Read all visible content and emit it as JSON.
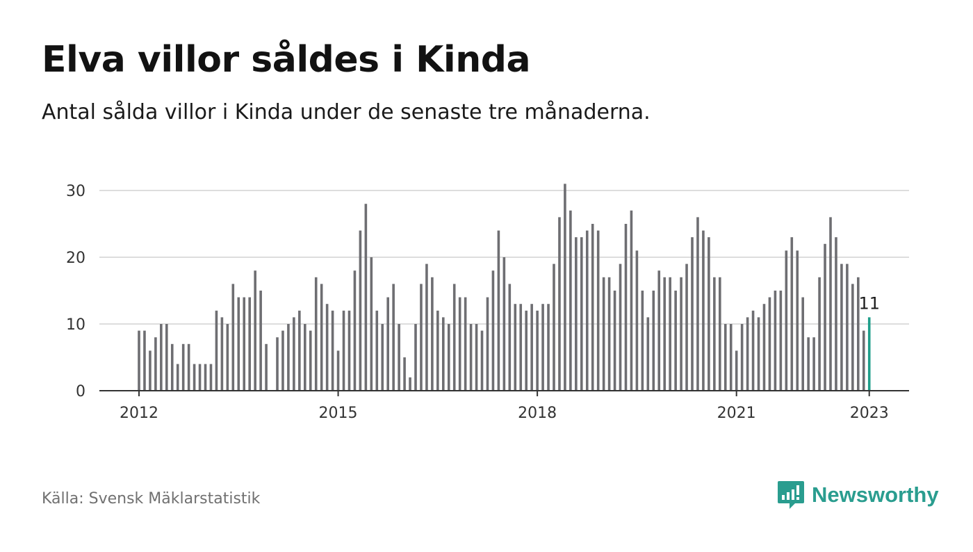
{
  "title": "Elva villor såldes i Kinda",
  "subtitle": "Antal sålda villor i Kinda under de senaste tre månaderna.",
  "source": "Källa: Svensk Mäklarstatistik",
  "brand": {
    "name": "Newsworthy",
    "icon": "newsworthy-logo-icon"
  },
  "colors": {
    "bar": "#6e6e72",
    "highlight": "#1f9e8a",
    "grid": "#dddddd",
    "axis": "#333333",
    "brand": "#2a9d8f"
  },
  "chart_data": {
    "type": "bar",
    "x_start": "2012-01",
    "interval": "month",
    "values": [
      9,
      9,
      6,
      8,
      10,
      10,
      7,
      4,
      7,
      7,
      4,
      4,
      4,
      4,
      12,
      11,
      10,
      16,
      14,
      14,
      14,
      18,
      15,
      7,
      null,
      8,
      9,
      10,
      11,
      12,
      10,
      9,
      17,
      16,
      13,
      12,
      6,
      12,
      12,
      18,
      24,
      28,
      20,
      12,
      10,
      14,
      16,
      10,
      5,
      2,
      10,
      16,
      19,
      17,
      12,
      11,
      10,
      16,
      14,
      14,
      10,
      10,
      9,
      14,
      18,
      24,
      20,
      16,
      13,
      13,
      12,
      13,
      12,
      13,
      13,
      19,
      26,
      31,
      27,
      23,
      23,
      24,
      25,
      24,
      17,
      17,
      15,
      19,
      25,
      27,
      21,
      15,
      11,
      15,
      18,
      17,
      17,
      15,
      17,
      19,
      23,
      26,
      24,
      23,
      17,
      17,
      10,
      10,
      6,
      10,
      11,
      12,
      11,
      13,
      14,
      15,
      15,
      21,
      23,
      21,
      14,
      8,
      8,
      17,
      22,
      26,
      23,
      19,
      19,
      16,
      17,
      9,
      11
    ],
    "highlight_last": true,
    "data_label": "11",
    "x_ticks": [
      "2012",
      "2015",
      "2018",
      "2021",
      "2023"
    ],
    "y_ticks": [
      "0",
      "10",
      "20",
      "30"
    ],
    "ylim": [
      0,
      30
    ],
    "grid": true
  }
}
